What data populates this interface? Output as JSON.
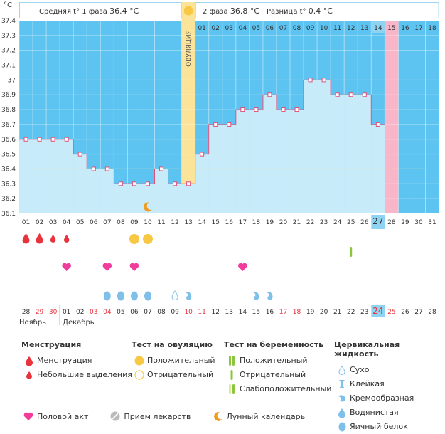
{
  "chart_data": {
    "type": "line",
    "unit_label": "°C",
    "y_ticks": [
      "37.4",
      "37.3",
      "37.2",
      "37.1",
      "37",
      "36.9",
      "36.8",
      "36.7",
      "36.6",
      "36.5",
      "36.4",
      "36.3",
      "36.2",
      "36.1"
    ],
    "ylim": [
      36.1,
      37.4
    ],
    "cycle_days": [
      "01",
      "02",
      "03",
      "04",
      "05",
      "06",
      "07",
      "08",
      "09",
      "10",
      "11",
      "12",
      "13",
      "14",
      "15",
      "16",
      "17",
      "18",
      "19",
      "20",
      "21",
      "22",
      "23",
      "24",
      "25",
      "26",
      "27",
      "28",
      "29",
      "30",
      "31"
    ],
    "temperatures": [
      36.6,
      36.6,
      36.6,
      36.6,
      36.5,
      36.4,
      36.4,
      36.3,
      36.3,
      36.3,
      36.4,
      36.3,
      36.3,
      36.5,
      36.7,
      36.7,
      36.8,
      36.8,
      36.9,
      36.8,
      36.8,
      37.0,
      37.0,
      36.9,
      36.9,
      36.9,
      36.7,
      null,
      null,
      null,
      null
    ],
    "coverline": 36.4,
    "ovulation_day": 13,
    "ovulation_label": "ОВУЛЯЦИЯ",
    "current_day": 27,
    "highlight_day": 28,
    "phase2_days": [
      "01",
      "02",
      "03",
      "04",
      "05",
      "06",
      "07",
      "08",
      "09",
      "10",
      "11",
      "12",
      "13",
      "14",
      "15",
      "16",
      "17",
      "18"
    ],
    "phase2_current": "14",
    "phase2_highlight": "15",
    "header": {
      "phase1_label": "Средняя t° 1 фаза",
      "phase1_value": "36.4 °C",
      "phase2_label": "2 фаза",
      "phase2_value": "36.8 °C",
      "diff_label": "Разница t°",
      "diff_value": "0.4 °C"
    },
    "markers": {
      "menstruation": [
        1,
        2,
        3,
        4
      ],
      "menstruation_size": [
        "large",
        "large",
        "small",
        "small"
      ],
      "ovulation_test_positive": [
        9,
        10
      ],
      "pregnancy_test_positive": [
        25
      ],
      "intercourse": [
        4,
        7,
        9,
        17
      ],
      "cervical_egg_white": [
        7,
        8,
        9,
        10
      ],
      "cervical_dry": [
        12
      ],
      "cervical_watery": [
        13,
        18,
        19
      ],
      "lunar": [
        10
      ]
    },
    "calendar": {
      "dates": [
        "28",
        "29",
        "30",
        "01",
        "02",
        "03",
        "04",
        "05",
        "06",
        "07",
        "08",
        "09",
        "10",
        "11",
        "12",
        "13",
        "14",
        "15",
        "16",
        "17",
        "18",
        "19",
        "20",
        "21",
        "22",
        "23",
        "24",
        "25",
        "26",
        "27",
        "28"
      ],
      "red_dates": [
        1,
        2,
        5,
        6,
        12,
        13,
        19,
        20,
        26,
        27
      ],
      "today_index": 26,
      "months": [
        "Ноябрь",
        "Декабрь"
      ]
    }
  },
  "legend": {
    "menstruation": {
      "title": "Менструация",
      "items": [
        "Менструация",
        "Небольшие выделения"
      ]
    },
    "ovulation_test": {
      "title": "Тест на овуляцию",
      "items": [
        "Положительный",
        "Отрицательный"
      ]
    },
    "pregnancy_test": {
      "title": "Тест на беременность",
      "items": [
        "Положительный",
        "Отрицательный",
        "Слабоположительный"
      ]
    },
    "cervical": {
      "title": "Цервикальная жидкость",
      "items": [
        "Сухо",
        "Клейкая",
        "Кремообразная",
        "Водянистая",
        "Яичный белок"
      ]
    },
    "bottom": [
      "Половой акт",
      "Прием лекарств",
      "Лунный календарь"
    ]
  },
  "colors": {
    "sky": "#5dc3f0",
    "fill": "#c8ebfa",
    "line": "#e0507a",
    "ovulation": "#fbe49a",
    "pink": "#f9b6c8",
    "current": "#8fd3f2",
    "coverline": "#e9e390",
    "red": "#e8323c",
    "heart": "#f03c9b",
    "drop": "#7ec0ea",
    "yellow": "#f7c844",
    "green": "#8cc63f",
    "orange": "#f09a1e"
  }
}
